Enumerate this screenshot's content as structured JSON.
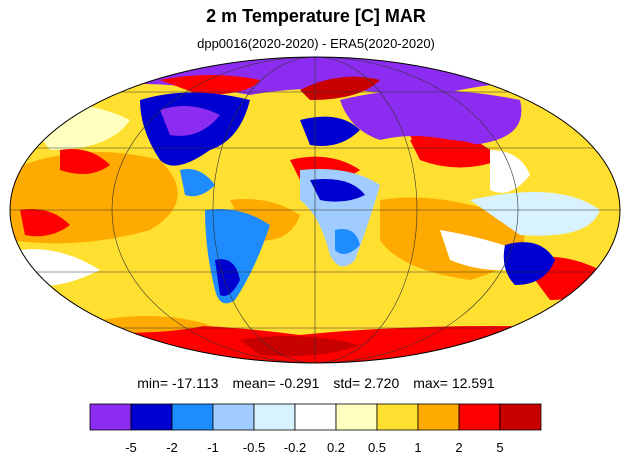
{
  "title": "2 m Temperature [C] MAR",
  "subtitle": "dpp0016(2020-2020) - ERA5(2020-2020)",
  "stats": [
    {
      "label": "min=",
      "value": "-17.113"
    },
    {
      "label": "mean=",
      "value": "-0.291"
    },
    {
      "label": "std=",
      "value": "2.720"
    },
    {
      "label": "max=",
      "value": "12.591"
    }
  ],
  "colorbar": {
    "colors": [
      "#8c2cf0",
      "#0000d0",
      "#1e8cff",
      "#a0ccff",
      "#d8f2ff",
      "#ffffff",
      "#ffffc0",
      "#ffe030",
      "#ffaa00",
      "#ff0000",
      "#c80000"
    ],
    "ticks": [
      -5,
      -2,
      -1,
      -0.5,
      -0.2,
      0.2,
      0.5,
      1,
      2,
      5
    ]
  }
}
